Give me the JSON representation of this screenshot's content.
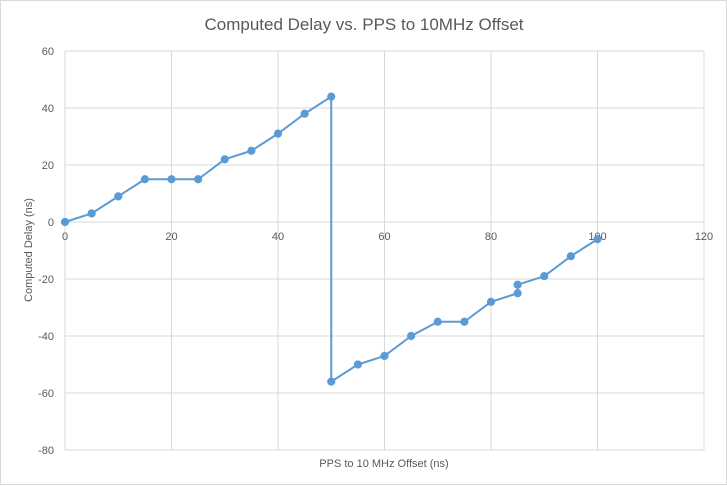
{
  "chart_data": {
    "type": "scatter",
    "title": "Computed Delay vs. PPS to 10MHz Offset",
    "xlabel": "PPS to 10 MHz Offset (ns)",
    "ylabel": "Computed Delay (ns)",
    "xlim": [
      0,
      120
    ],
    "ylim": [
      -80,
      60
    ],
    "xticks": [
      0,
      20,
      40,
      60,
      80,
      100,
      120
    ],
    "yticks": [
      -80,
      -60,
      -40,
      -20,
      0,
      20,
      40,
      60
    ],
    "grid": true,
    "legend": "none",
    "series": [
      {
        "color": "#5b9bd5",
        "points": [
          [
            0,
            0
          ],
          [
            5,
            3
          ],
          [
            10,
            9
          ],
          [
            15,
            15
          ],
          [
            20,
            15
          ],
          [
            25,
            15
          ],
          [
            30,
            22
          ],
          [
            35,
            25
          ],
          [
            40,
            31
          ],
          [
            45,
            38
          ],
          [
            50,
            44
          ],
          [
            50,
            -56
          ],
          [
            55,
            -50
          ],
          [
            60,
            -47
          ],
          [
            65,
            -40
          ],
          [
            70,
            -35
          ],
          [
            75,
            -35
          ],
          [
            80,
            -28
          ],
          [
            85,
            -25
          ],
          [
            85,
            -22
          ],
          [
            90,
            -19
          ],
          [
            95,
            -12
          ],
          [
            100,
            -6
          ]
        ]
      }
    ]
  }
}
